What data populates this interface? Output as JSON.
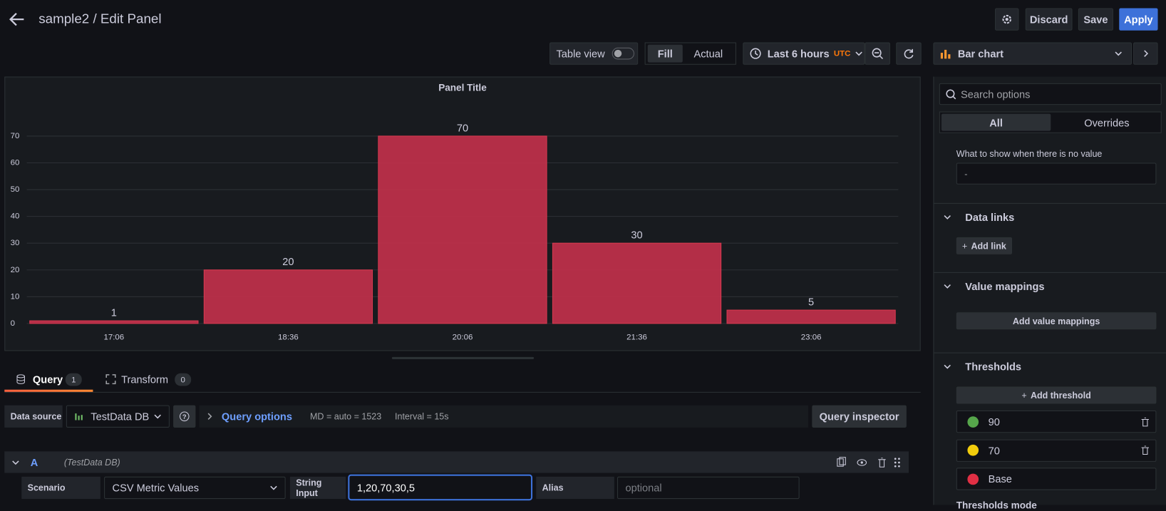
{
  "header": {
    "title": "sample2 / Edit Panel",
    "discard": "Discard",
    "save": "Save",
    "apply": "Apply"
  },
  "toolbar": {
    "table_view": "Table view",
    "fill": "Fill",
    "actual": "Actual",
    "time_range": "Last 6 hours",
    "timezone": "UTC",
    "visualization": "Bar chart"
  },
  "chart_data": {
    "type": "bar",
    "title": "Panel Title",
    "categories": [
      "17:06",
      "18:36",
      "20:06",
      "21:36",
      "23:06"
    ],
    "values": [
      1,
      20,
      70,
      30,
      5
    ],
    "color": "#c4314b",
    "ylim": [
      0,
      70
    ],
    "yticks": [
      0,
      10,
      20,
      30,
      40,
      50,
      60,
      70
    ],
    "grid": true
  },
  "query_tabs": [
    {
      "label": "Query",
      "count": 1
    },
    {
      "label": "Transform",
      "count": 0
    }
  ],
  "query_bar": {
    "data_source_label": "Data source",
    "data_source": "TestData DB",
    "query_options": "Query options",
    "md": "MD = auto = 1523",
    "interval": "Interval = 15s",
    "inspector": "Query inspector"
  },
  "query": {
    "ref": "A",
    "source": "(TestData DB)",
    "scenario_label": "Scenario",
    "scenario": "CSV Metric Values",
    "string_input_label": "String Input",
    "string_input": "1,20,70,30,5",
    "alias_label": "Alias",
    "alias_placeholder": "optional"
  },
  "options": {
    "search": "Search options",
    "tabs": [
      "All",
      "Overrides"
    ],
    "no_value_label": "What to show when there is no value",
    "no_value": "-",
    "data_links": "Data links",
    "add_link": "Add link",
    "value_mappings": "Value mappings",
    "add_value_mappings": "Add value mappings",
    "thresholds": "Thresholds",
    "add_threshold": "Add threshold",
    "threshold_steps": [
      {
        "value": 90,
        "color": "#56a64b"
      },
      {
        "value": 70,
        "color": "#f2cc0c"
      },
      {
        "value": "Base",
        "color": "#e02f44"
      }
    ],
    "thresholds_mode": "Thresholds mode"
  }
}
